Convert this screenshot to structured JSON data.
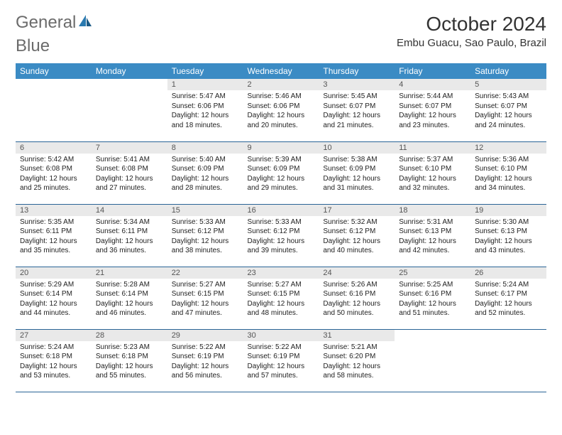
{
  "brand": {
    "part1": "General",
    "part2": "Blue"
  },
  "title": "October 2024",
  "location": "Embu Guacu, Sao Paulo, Brazil",
  "weekdays": [
    "Sunday",
    "Monday",
    "Tuesday",
    "Wednesday",
    "Thursday",
    "Friday",
    "Saturday"
  ],
  "colors": {
    "header_bg": "#3b8bc4",
    "header_text": "#ffffff",
    "daynum_bg": "#e9e9e9",
    "row_border": "#2a6496",
    "logo_gray": "#6b6b6b",
    "logo_blue": "#2a7ab0"
  },
  "layout": {
    "columns": 7,
    "rows": 5,
    "leading_blanks": 2
  },
  "days": [
    {
      "n": "1",
      "sunrise": "Sunrise: 5:47 AM",
      "sunset": "Sunset: 6:06 PM",
      "day1": "Daylight: 12 hours",
      "day2": "and 18 minutes."
    },
    {
      "n": "2",
      "sunrise": "Sunrise: 5:46 AM",
      "sunset": "Sunset: 6:06 PM",
      "day1": "Daylight: 12 hours",
      "day2": "and 20 minutes."
    },
    {
      "n": "3",
      "sunrise": "Sunrise: 5:45 AM",
      "sunset": "Sunset: 6:07 PM",
      "day1": "Daylight: 12 hours",
      "day2": "and 21 minutes."
    },
    {
      "n": "4",
      "sunrise": "Sunrise: 5:44 AM",
      "sunset": "Sunset: 6:07 PM",
      "day1": "Daylight: 12 hours",
      "day2": "and 23 minutes."
    },
    {
      "n": "5",
      "sunrise": "Sunrise: 5:43 AM",
      "sunset": "Sunset: 6:07 PM",
      "day1": "Daylight: 12 hours",
      "day2": "and 24 minutes."
    },
    {
      "n": "6",
      "sunrise": "Sunrise: 5:42 AM",
      "sunset": "Sunset: 6:08 PM",
      "day1": "Daylight: 12 hours",
      "day2": "and 25 minutes."
    },
    {
      "n": "7",
      "sunrise": "Sunrise: 5:41 AM",
      "sunset": "Sunset: 6:08 PM",
      "day1": "Daylight: 12 hours",
      "day2": "and 27 minutes."
    },
    {
      "n": "8",
      "sunrise": "Sunrise: 5:40 AM",
      "sunset": "Sunset: 6:09 PM",
      "day1": "Daylight: 12 hours",
      "day2": "and 28 minutes."
    },
    {
      "n": "9",
      "sunrise": "Sunrise: 5:39 AM",
      "sunset": "Sunset: 6:09 PM",
      "day1": "Daylight: 12 hours",
      "day2": "and 29 minutes."
    },
    {
      "n": "10",
      "sunrise": "Sunrise: 5:38 AM",
      "sunset": "Sunset: 6:09 PM",
      "day1": "Daylight: 12 hours",
      "day2": "and 31 minutes."
    },
    {
      "n": "11",
      "sunrise": "Sunrise: 5:37 AM",
      "sunset": "Sunset: 6:10 PM",
      "day1": "Daylight: 12 hours",
      "day2": "and 32 minutes."
    },
    {
      "n": "12",
      "sunrise": "Sunrise: 5:36 AM",
      "sunset": "Sunset: 6:10 PM",
      "day1": "Daylight: 12 hours",
      "day2": "and 34 minutes."
    },
    {
      "n": "13",
      "sunrise": "Sunrise: 5:35 AM",
      "sunset": "Sunset: 6:11 PM",
      "day1": "Daylight: 12 hours",
      "day2": "and 35 minutes."
    },
    {
      "n": "14",
      "sunrise": "Sunrise: 5:34 AM",
      "sunset": "Sunset: 6:11 PM",
      "day1": "Daylight: 12 hours",
      "day2": "and 36 minutes."
    },
    {
      "n": "15",
      "sunrise": "Sunrise: 5:33 AM",
      "sunset": "Sunset: 6:12 PM",
      "day1": "Daylight: 12 hours",
      "day2": "and 38 minutes."
    },
    {
      "n": "16",
      "sunrise": "Sunrise: 5:33 AM",
      "sunset": "Sunset: 6:12 PM",
      "day1": "Daylight: 12 hours",
      "day2": "and 39 minutes."
    },
    {
      "n": "17",
      "sunrise": "Sunrise: 5:32 AM",
      "sunset": "Sunset: 6:12 PM",
      "day1": "Daylight: 12 hours",
      "day2": "and 40 minutes."
    },
    {
      "n": "18",
      "sunrise": "Sunrise: 5:31 AM",
      "sunset": "Sunset: 6:13 PM",
      "day1": "Daylight: 12 hours",
      "day2": "and 42 minutes."
    },
    {
      "n": "19",
      "sunrise": "Sunrise: 5:30 AM",
      "sunset": "Sunset: 6:13 PM",
      "day1": "Daylight: 12 hours",
      "day2": "and 43 minutes."
    },
    {
      "n": "20",
      "sunrise": "Sunrise: 5:29 AM",
      "sunset": "Sunset: 6:14 PM",
      "day1": "Daylight: 12 hours",
      "day2": "and 44 minutes."
    },
    {
      "n": "21",
      "sunrise": "Sunrise: 5:28 AM",
      "sunset": "Sunset: 6:14 PM",
      "day1": "Daylight: 12 hours",
      "day2": "and 46 minutes."
    },
    {
      "n": "22",
      "sunrise": "Sunrise: 5:27 AM",
      "sunset": "Sunset: 6:15 PM",
      "day1": "Daylight: 12 hours",
      "day2": "and 47 minutes."
    },
    {
      "n": "23",
      "sunrise": "Sunrise: 5:27 AM",
      "sunset": "Sunset: 6:15 PM",
      "day1": "Daylight: 12 hours",
      "day2": "and 48 minutes."
    },
    {
      "n": "24",
      "sunrise": "Sunrise: 5:26 AM",
      "sunset": "Sunset: 6:16 PM",
      "day1": "Daylight: 12 hours",
      "day2": "and 50 minutes."
    },
    {
      "n": "25",
      "sunrise": "Sunrise: 5:25 AM",
      "sunset": "Sunset: 6:16 PM",
      "day1": "Daylight: 12 hours",
      "day2": "and 51 minutes."
    },
    {
      "n": "26",
      "sunrise": "Sunrise: 5:24 AM",
      "sunset": "Sunset: 6:17 PM",
      "day1": "Daylight: 12 hours",
      "day2": "and 52 minutes."
    },
    {
      "n": "27",
      "sunrise": "Sunrise: 5:24 AM",
      "sunset": "Sunset: 6:18 PM",
      "day1": "Daylight: 12 hours",
      "day2": "and 53 minutes."
    },
    {
      "n": "28",
      "sunrise": "Sunrise: 5:23 AM",
      "sunset": "Sunset: 6:18 PM",
      "day1": "Daylight: 12 hours",
      "day2": "and 55 minutes."
    },
    {
      "n": "29",
      "sunrise": "Sunrise: 5:22 AM",
      "sunset": "Sunset: 6:19 PM",
      "day1": "Daylight: 12 hours",
      "day2": "and 56 minutes."
    },
    {
      "n": "30",
      "sunrise": "Sunrise: 5:22 AM",
      "sunset": "Sunset: 6:19 PM",
      "day1": "Daylight: 12 hours",
      "day2": "and 57 minutes."
    },
    {
      "n": "31",
      "sunrise": "Sunrise: 5:21 AM",
      "sunset": "Sunset: 6:20 PM",
      "day1": "Daylight: 12 hours",
      "day2": "and 58 minutes."
    }
  ]
}
